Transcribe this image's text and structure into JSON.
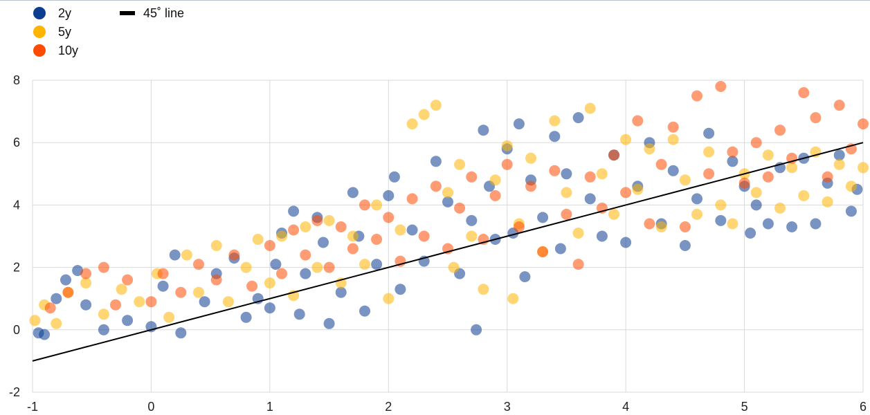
{
  "chart_data": {
    "type": "scatter",
    "title": "",
    "xlabel": "",
    "ylabel": "",
    "xlim": [
      -1,
      6
    ],
    "ylim": [
      -2,
      8
    ],
    "x_ticks": [
      "-1",
      "0",
      "1",
      "2",
      "3",
      "4",
      "5",
      "6"
    ],
    "y_ticks": [
      "-2",
      "0",
      "2",
      "4",
      "6",
      "8"
    ],
    "grid": true,
    "legend_position": "top-left",
    "series": [
      {
        "name": "2y",
        "color": "#0b3d91",
        "points": [
          [
            -0.95,
            -0.1
          ],
          [
            -0.9,
            -0.15
          ],
          [
            -0.8,
            1.0
          ],
          [
            -0.72,
            1.6
          ],
          [
            -0.62,
            1.9
          ],
          [
            -0.55,
            0.8
          ],
          [
            -0.4,
            0.0
          ],
          [
            -0.2,
            0.3
          ],
          [
            0.0,
            0.1
          ],
          [
            0.1,
            1.4
          ],
          [
            0.2,
            2.4
          ],
          [
            0.25,
            -0.1
          ],
          [
            0.45,
            0.9
          ],
          [
            0.55,
            1.8
          ],
          [
            0.7,
            2.3
          ],
          [
            0.8,
            0.4
          ],
          [
            0.9,
            1.0
          ],
          [
            1.0,
            0.7
          ],
          [
            1.05,
            2.1
          ],
          [
            1.1,
            3.1
          ],
          [
            1.2,
            3.8
          ],
          [
            1.25,
            0.5
          ],
          [
            1.3,
            1.8
          ],
          [
            1.4,
            3.6
          ],
          [
            1.45,
            2.8
          ],
          [
            1.5,
            0.2
          ],
          [
            1.6,
            1.2
          ],
          [
            1.7,
            4.4
          ],
          [
            1.75,
            3.0
          ],
          [
            1.8,
            0.6
          ],
          [
            1.9,
            2.1
          ],
          [
            2.0,
            4.3
          ],
          [
            2.05,
            4.9
          ],
          [
            2.1,
            1.3
          ],
          [
            2.2,
            3.2
          ],
          [
            2.3,
            2.2
          ],
          [
            2.4,
            5.4
          ],
          [
            2.5,
            4.1
          ],
          [
            2.6,
            1.8
          ],
          [
            2.7,
            3.5
          ],
          [
            2.74,
            0.0
          ],
          [
            2.8,
            6.4
          ],
          [
            2.85,
            4.6
          ],
          [
            2.9,
            2.9
          ],
          [
            3.0,
            5.8
          ],
          [
            3.05,
            3.1
          ],
          [
            3.1,
            6.6
          ],
          [
            3.15,
            1.7
          ],
          [
            3.2,
            4.8
          ],
          [
            3.3,
            3.6
          ],
          [
            3.4,
            6.2
          ],
          [
            3.45,
            2.6
          ],
          [
            3.5,
            5.0
          ],
          [
            3.6,
            6.8
          ],
          [
            3.7,
            4.2
          ],
          [
            3.8,
            3.0
          ],
          [
            3.9,
            5.6
          ],
          [
            4.0,
            2.8
          ],
          [
            4.1,
            4.6
          ],
          [
            4.2,
            6.0
          ],
          [
            4.3,
            3.4
          ],
          [
            4.4,
            5.1
          ],
          [
            4.5,
            2.7
          ],
          [
            4.6,
            4.2
          ],
          [
            4.7,
            6.3
          ],
          [
            4.8,
            3.5
          ],
          [
            4.9,
            5.4
          ],
          [
            5.0,
            4.6
          ],
          [
            5.05,
            3.1
          ],
          [
            5.1,
            4.0
          ],
          [
            5.2,
            3.4
          ],
          [
            5.3,
            5.2
          ],
          [
            5.4,
            3.3
          ],
          [
            5.5,
            5.5
          ],
          [
            5.6,
            3.4
          ],
          [
            5.7,
            4.7
          ],
          [
            5.8,
            5.6
          ],
          [
            5.9,
            3.8
          ],
          [
            5.95,
            4.5
          ]
        ]
      },
      {
        "name": "5y",
        "color": "#ffb400",
        "points": [
          [
            -0.98,
            0.3
          ],
          [
            -0.9,
            0.8
          ],
          [
            -0.8,
            0.2
          ],
          [
            -0.7,
            1.2
          ],
          [
            -0.55,
            1.5
          ],
          [
            -0.4,
            0.5
          ],
          [
            -0.25,
            1.3
          ],
          [
            -0.1,
            0.9
          ],
          [
            0.05,
            1.8
          ],
          [
            0.15,
            0.4
          ],
          [
            0.3,
            2.4
          ],
          [
            0.4,
            1.2
          ],
          [
            0.55,
            2.7
          ],
          [
            0.65,
            0.9
          ],
          [
            0.8,
            2.0
          ],
          [
            0.9,
            2.9
          ],
          [
            1.0,
            1.5
          ],
          [
            1.1,
            3.0
          ],
          [
            1.2,
            1.1
          ],
          [
            1.3,
            3.3
          ],
          [
            1.4,
            2.0
          ],
          [
            1.5,
            3.5
          ],
          [
            1.6,
            1.5
          ],
          [
            1.7,
            3.0
          ],
          [
            1.8,
            2.1
          ],
          [
            1.9,
            4.0
          ],
          [
            2.0,
            1.0
          ],
          [
            2.1,
            3.2
          ],
          [
            2.2,
            6.6
          ],
          [
            2.3,
            6.9
          ],
          [
            2.4,
            7.2
          ],
          [
            2.5,
            4.4
          ],
          [
            2.55,
            2.0
          ],
          [
            2.6,
            5.3
          ],
          [
            2.7,
            3.0
          ],
          [
            2.8,
            1.3
          ],
          [
            2.9,
            4.8
          ],
          [
            3.0,
            5.9
          ],
          [
            3.05,
            1.0
          ],
          [
            3.1,
            3.4
          ],
          [
            3.2,
            5.5
          ],
          [
            3.3,
            2.5
          ],
          [
            3.4,
            6.7
          ],
          [
            3.5,
            4.4
          ],
          [
            3.6,
            3.1
          ],
          [
            3.7,
            7.1
          ],
          [
            3.8,
            5.0
          ],
          [
            3.9,
            3.7
          ],
          [
            4.0,
            6.1
          ],
          [
            4.1,
            4.5
          ],
          [
            4.2,
            5.8
          ],
          [
            4.3,
            3.3
          ],
          [
            4.4,
            6.1
          ],
          [
            4.5,
            4.8
          ],
          [
            4.6,
            3.7
          ],
          [
            4.7,
            5.7
          ],
          [
            4.8,
            4.0
          ],
          [
            4.9,
            3.4
          ],
          [
            5.0,
            5.0
          ],
          [
            5.1,
            4.4
          ],
          [
            5.2,
            5.6
          ],
          [
            5.3,
            3.9
          ],
          [
            5.4,
            5.2
          ],
          [
            5.5,
            4.3
          ],
          [
            5.6,
            5.7
          ],
          [
            5.7,
            4.1
          ],
          [
            5.8,
            5.3
          ],
          [
            5.9,
            4.6
          ],
          [
            6.0,
            5.2
          ]
        ]
      },
      {
        "name": "10y",
        "color": "#ff4b00",
        "points": [
          [
            -0.85,
            0.7
          ],
          [
            -0.7,
            1.2
          ],
          [
            -0.55,
            1.8
          ],
          [
            -0.4,
            2.0
          ],
          [
            -0.3,
            0.8
          ],
          [
            -0.2,
            1.6
          ],
          [
            0.0,
            0.9
          ],
          [
            0.1,
            1.8
          ],
          [
            0.25,
            1.2
          ],
          [
            0.4,
            2.1
          ],
          [
            0.55,
            1.6
          ],
          [
            0.7,
            2.4
          ],
          [
            0.85,
            1.4
          ],
          [
            1.0,
            2.7
          ],
          [
            1.1,
            1.8
          ],
          [
            1.2,
            3.2
          ],
          [
            1.3,
            2.4
          ],
          [
            1.4,
            3.5
          ],
          [
            1.5,
            2.0
          ],
          [
            1.6,
            3.3
          ],
          [
            1.7,
            2.6
          ],
          [
            1.8,
            4.0
          ],
          [
            1.9,
            2.9
          ],
          [
            2.0,
            3.6
          ],
          [
            2.1,
            2.2
          ],
          [
            2.2,
            4.2
          ],
          [
            2.3,
            3.0
          ],
          [
            2.4,
            4.6
          ],
          [
            2.5,
            2.6
          ],
          [
            2.6,
            3.9
          ],
          [
            2.7,
            4.9
          ],
          [
            2.8,
            2.9
          ],
          [
            2.9,
            4.3
          ],
          [
            3.0,
            5.3
          ],
          [
            3.1,
            3.3
          ],
          [
            3.2,
            4.6
          ],
          [
            3.3,
            2.5
          ],
          [
            3.4,
            5.1
          ],
          [
            3.5,
            3.7
          ],
          [
            3.6,
            2.1
          ],
          [
            3.7,
            4.9
          ],
          [
            3.8,
            3.9
          ],
          [
            3.9,
            5.6
          ],
          [
            4.0,
            4.4
          ],
          [
            4.1,
            6.7
          ],
          [
            4.2,
            3.4
          ],
          [
            4.3,
            5.3
          ],
          [
            4.4,
            6.5
          ],
          [
            4.5,
            3.3
          ],
          [
            4.6,
            7.5
          ],
          [
            4.7,
            5.0
          ],
          [
            4.8,
            7.8
          ],
          [
            4.9,
            5.7
          ],
          [
            5.0,
            4.7
          ],
          [
            5.1,
            6.0
          ],
          [
            5.2,
            4.9
          ],
          [
            5.3,
            6.4
          ],
          [
            5.4,
            5.5
          ],
          [
            5.5,
            7.6
          ],
          [
            5.6,
            6.8
          ],
          [
            5.7,
            4.9
          ],
          [
            5.8,
            7.2
          ],
          [
            5.9,
            5.8
          ],
          [
            6.0,
            6.6
          ]
        ]
      }
    ],
    "reference_line": {
      "name": "45˚ line",
      "color": "#000000",
      "points": [
        [
          -1,
          -1
        ],
        [
          6,
          6
        ]
      ]
    }
  }
}
